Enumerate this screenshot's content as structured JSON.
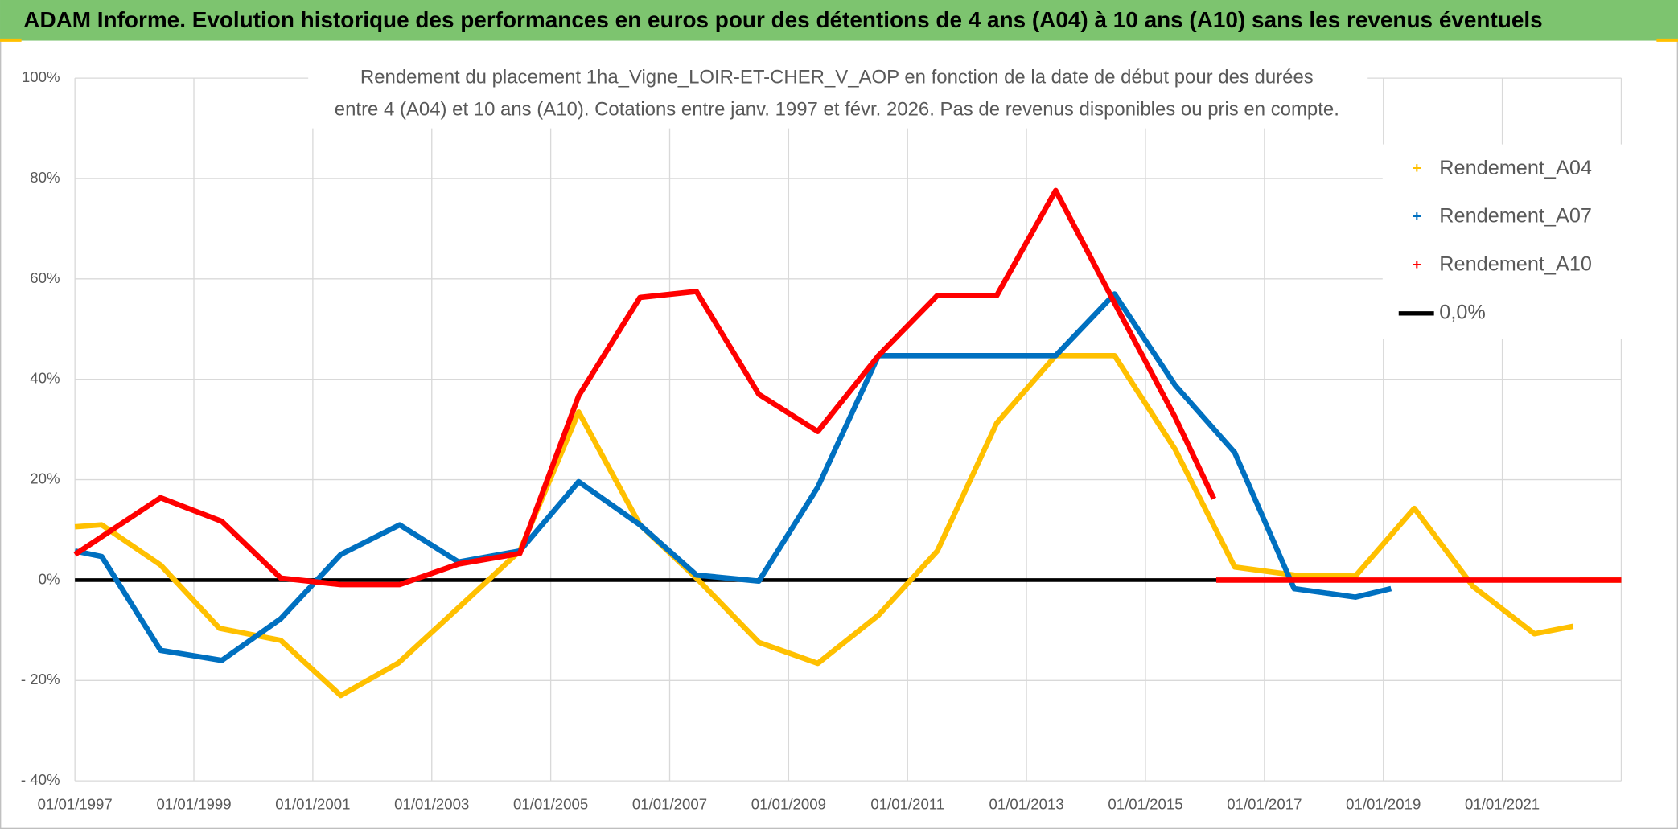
{
  "header": {
    "title": "ADAM Informe. Evolution historique des performances en euros pour des détentions de 4 ans (A04) à 10 ans (A10) sans les revenus éventuels"
  },
  "chart_data": {
    "type": "line",
    "title": [
      "Rendement du placement 1ha_Vigne_LOIR-ET-CHER_V_AOP en fonction de la date de début pour des durées",
      "entre 4 (A04) et 10 ans (A10). Cotations entre janv. 1997 et févr. 2026. Pas de revenus disponibles ou pris en compte."
    ],
    "xlim": [
      1997,
      2023
    ],
    "xticks": [
      {
        "value": 1997,
        "label": "01/01/1997"
      },
      {
        "value": 1999,
        "label": "01/01/1999"
      },
      {
        "value": 2001,
        "label": "01/01/2001"
      },
      {
        "value": 2003,
        "label": "01/01/2003"
      },
      {
        "value": 2005,
        "label": "01/01/2005"
      },
      {
        "value": 2007,
        "label": "01/01/2007"
      },
      {
        "value": 2009,
        "label": "01/01/2009"
      },
      {
        "value": 2011,
        "label": "01/01/2011"
      },
      {
        "value": 2013,
        "label": "01/01/2013"
      },
      {
        "value": 2015,
        "label": "01/01/2015"
      },
      {
        "value": 2017,
        "label": "01/01/2017"
      },
      {
        "value": 2019,
        "label": "01/01/2019"
      },
      {
        "value": 2021,
        "label": "01/01/2021"
      }
    ],
    "ylim": [
      -40,
      100
    ],
    "yticks": [
      {
        "value": -40,
        "label": "- 40%"
      },
      {
        "value": -20,
        "label": "- 20%"
      },
      {
        "value": 0,
        "label": "0%"
      },
      {
        "value": 20,
        "label": "20%"
      },
      {
        "value": 40,
        "label": "40%"
      },
      {
        "value": 60,
        "label": "60%"
      },
      {
        "value": 80,
        "label": "80%"
      },
      {
        "value": 100,
        "label": "100%"
      }
    ],
    "grid": true,
    "legend": "right",
    "series": [
      {
        "name": "Rendement_A04",
        "color": "#ffc000",
        "x": [
          1997.0,
          1997.45,
          1998.44,
          1999.43,
          2000.46,
          2001.47,
          2002.44,
          2003.45,
          2004.48,
          2005.47,
          2006.5,
          2007.45,
          2008.5,
          2009.49,
          2010.51,
          2011.5,
          2012.5,
          2013.49,
          2014.48,
          2015.5,
          2016.5,
          2017.5,
          2018.53,
          2019.52,
          2020.51,
          2021.54,
          2022.19,
          2022.25,
          2022.3,
          2023.0
        ],
        "values": [
          10.6,
          11,
          3,
          -9.6,
          -12,
          -23,
          -16.5,
          -5.5,
          5.8,
          33.5,
          11,
          0.4,
          -12.4,
          -16.6,
          -7,
          5.8,
          31.3,
          44.7,
          44.7,
          26,
          2.6,
          1,
          0.8,
          14.3,
          -1.3,
          -10.7,
          -9.2,
          null,
          0,
          0
        ]
      },
      {
        "name": "Rendement_A07",
        "color": "#0070c0",
        "x": [
          1997.0,
          1997.45,
          1998.44,
          1999.47,
          2000.46,
          2001.47,
          2002.46,
          2003.45,
          2004.48,
          2005.47,
          2006.5,
          2007.45,
          2008.5,
          2009.49,
          2010.51,
          2011.5,
          2012.5,
          2013.49,
          2014.48,
          2015.5,
          2016.5,
          2017.5,
          2018.53,
          2019.13
        ],
        "values": [
          5.8,
          4.7,
          -14,
          -16,
          -7.7,
          5.1,
          11,
          3.6,
          5.8,
          19.6,
          11,
          1,
          -0.2,
          18.5,
          44.7,
          44.7,
          44.7,
          44.7,
          57,
          38.8,
          25.4,
          -1.7,
          -3.4,
          -1.7
        ]
      },
      {
        "name": "Rendement_A10",
        "color": "#ff0000",
        "x": [
          1997.0,
          1998.44,
          1999.47,
          2000.46,
          2001.47,
          2002.46,
          2003.45,
          2004.48,
          2005.47,
          2006.5,
          2007.45,
          2008.5,
          2009.49,
          2010.51,
          2011.5,
          2012.5,
          2013.49,
          2014.48,
          2015.5,
          2016.15,
          2016.17,
          2016.19,
          2023.0
        ],
        "values": [
          5.1,
          16.4,
          11.7,
          0.4,
          -0.9,
          -0.9,
          3.2,
          5.3,
          36.7,
          56.3,
          57.5,
          37,
          29.6,
          44.7,
          56.7,
          56.7,
          77.6,
          55.2,
          32.4,
          16.2,
          null,
          0,
          0
        ]
      },
      {
        "name": "0,0%",
        "color": "#000000",
        "x": [
          1997,
          2023
        ],
        "values": [
          0,
          0
        ]
      }
    ]
  }
}
